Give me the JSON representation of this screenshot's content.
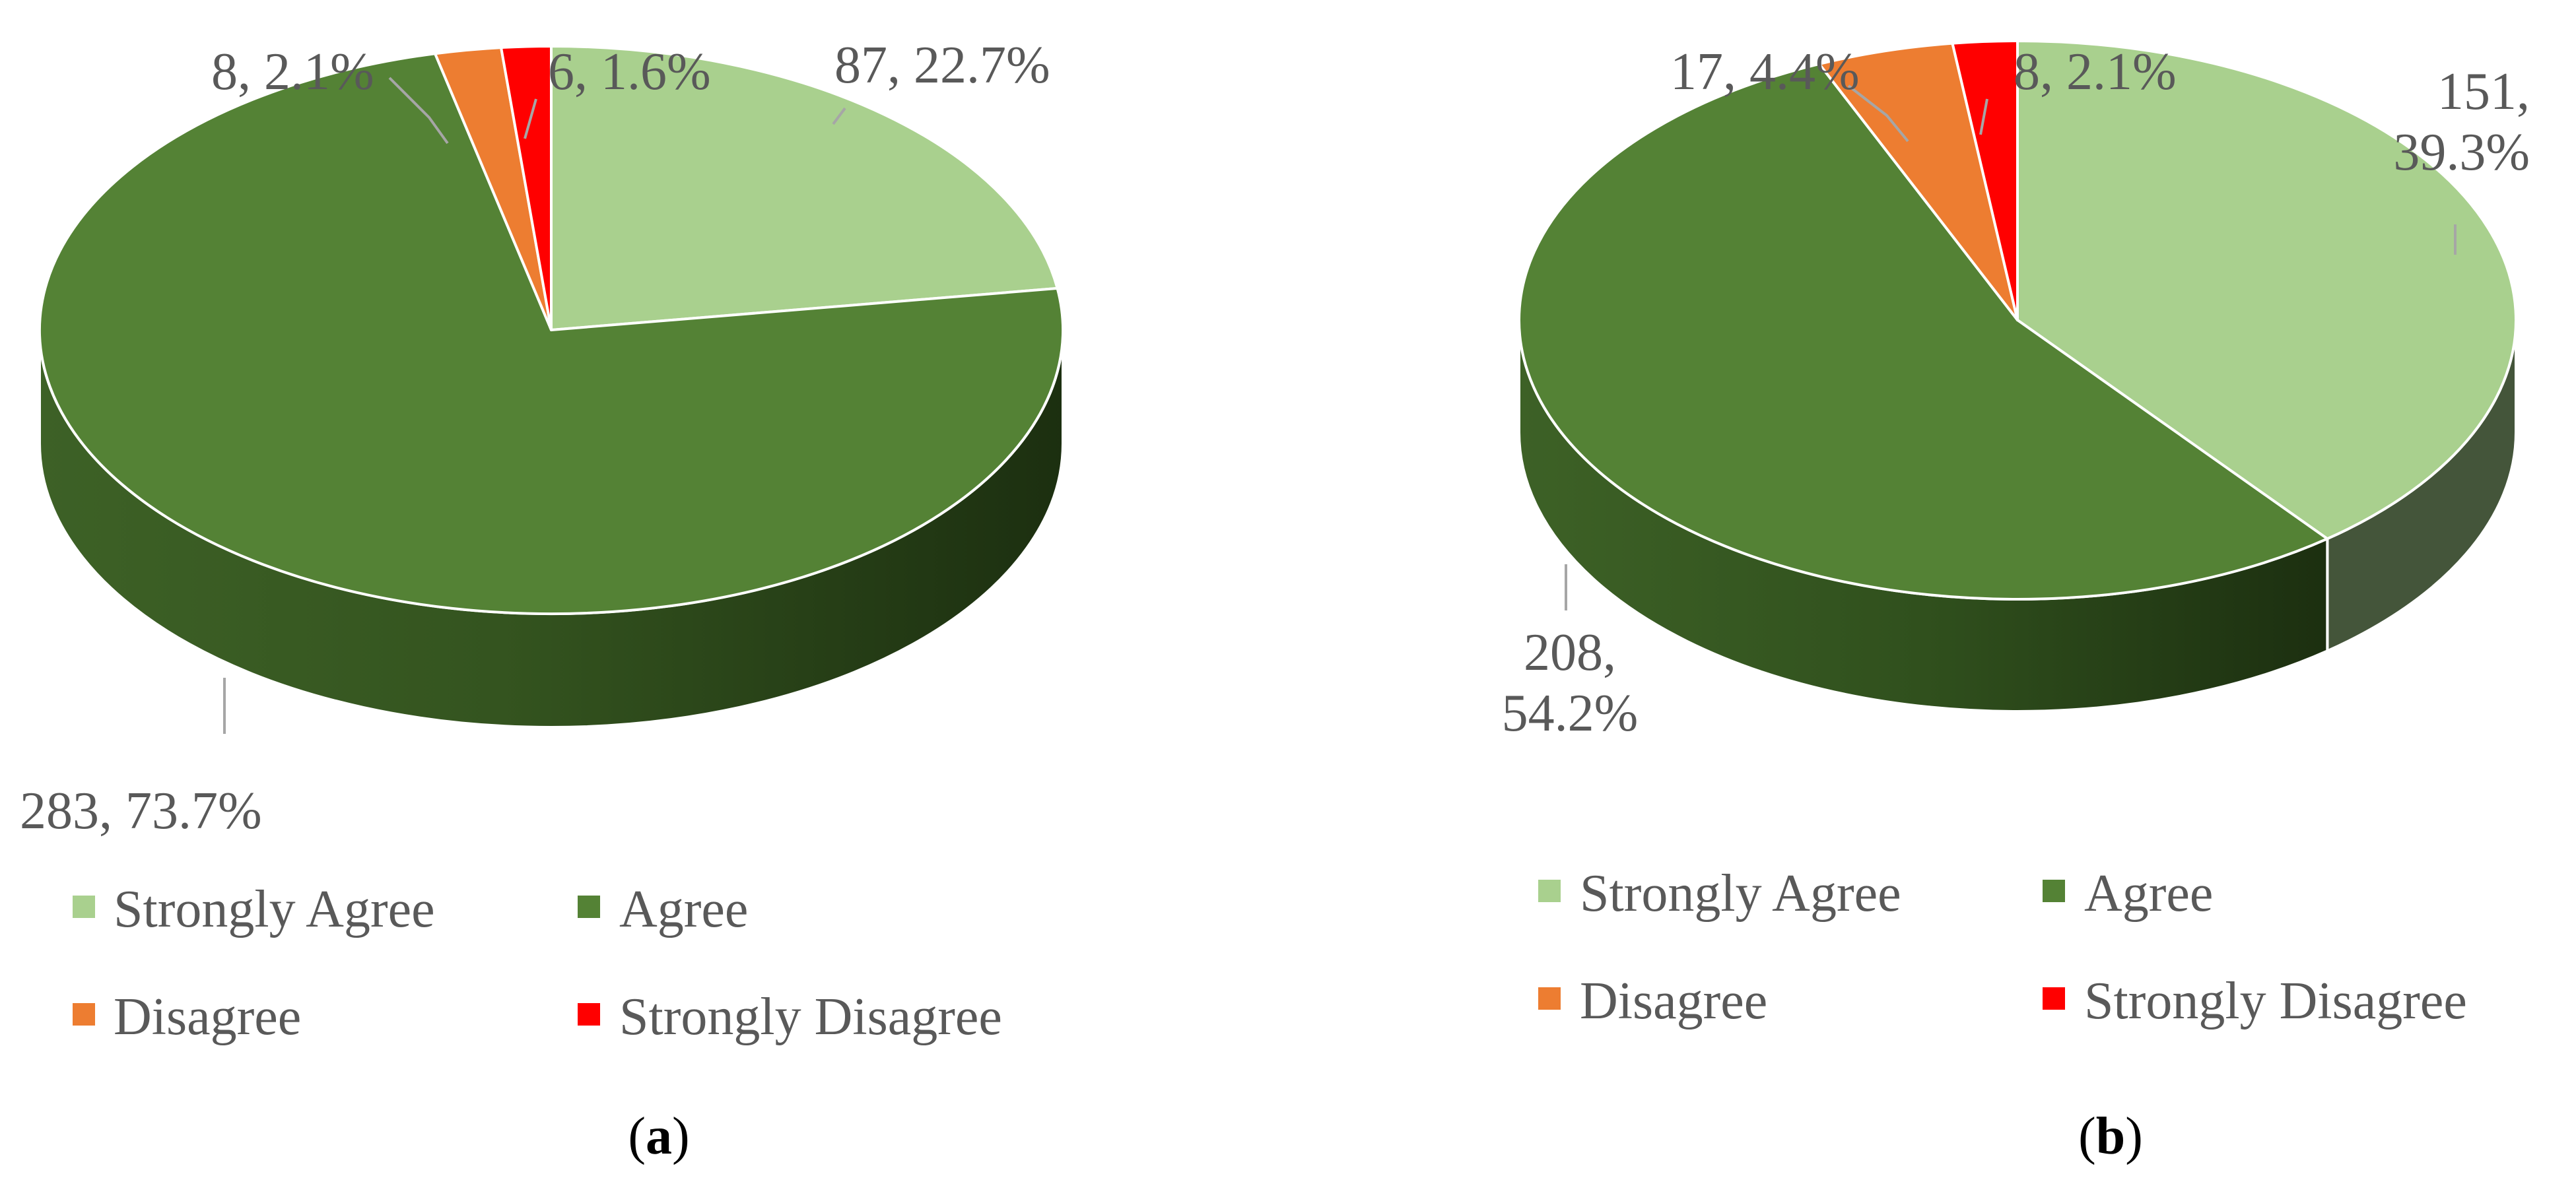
{
  "colors": {
    "strongly_agree": "#a9d08e",
    "agree": "#548235",
    "disagree": "#ed7d31",
    "strongly_disagree": "#ff0000",
    "leader": "#a6a6a6",
    "text": "#595959"
  },
  "chart_data": [
    {
      "type": "pie",
      "panel_label": "a",
      "categories": [
        "Strongly Agree",
        "Agree",
        "Disagree",
        "Strongly Disagree"
      ],
      "values": [
        87,
        283,
        8,
        6
      ],
      "percentages": [
        22.7,
        73.7,
        2.1,
        1.6
      ],
      "data_labels": [
        "87, 22.7%",
        "283, 73.7%",
        "8, 2.1%",
        "6, 1.6%"
      ],
      "legend_placement": "bottom",
      "style": "3d"
    },
    {
      "type": "pie",
      "panel_label": "b",
      "categories": [
        "Strongly Agree",
        "Agree",
        "Disagree",
        "Strongly Disagree"
      ],
      "values": [
        151,
        208,
        17,
        8
      ],
      "percentages": [
        39.3,
        54.2,
        4.4,
        2.1
      ],
      "data_labels": [
        "151, 39.3%",
        "208, 54.2%",
        "17, 4.4%",
        "8, 2.1%"
      ],
      "legend_placement": "bottom",
      "style": "3d"
    }
  ]
}
